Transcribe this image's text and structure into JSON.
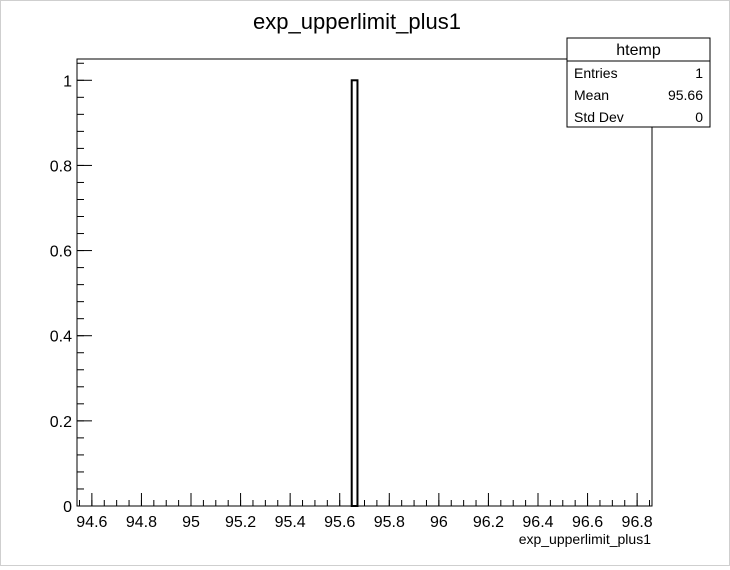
{
  "chart_data": {
    "type": "bar",
    "title": "exp_upperlimit_plus1",
    "xlabel": "exp_upperlimit_plus1",
    "ylabel": "",
    "xlim": [
      94.54,
      96.86
    ],
    "ylim": [
      0,
      1.05
    ],
    "xticks": [
      94.6,
      94.8,
      95,
      95.2,
      95.4,
      95.6,
      95.8,
      96,
      96.2,
      96.4,
      96.6,
      96.8
    ],
    "xtick_labels": [
      "94.6",
      "94.8",
      "95",
      "95.2",
      "95.4",
      "95.6",
      "95.8",
      "96",
      "96.2",
      "96.4",
      "96.6",
      "96.8"
    ],
    "yticks": [
      0,
      0.2,
      0.4,
      0.6,
      0.8,
      1
    ],
    "ytick_labels": [
      "0",
      "0.2",
      "0.4",
      "0.6",
      "0.8",
      "1"
    ],
    "bins": [
      {
        "low": 95.6484,
        "high": 95.6716,
        "value": 1
      }
    ],
    "grid": false,
    "stats_box": {
      "name": "htemp",
      "rows": [
        {
          "label": "Entries",
          "value": "1"
        },
        {
          "label": "Mean",
          "value": "95.66"
        },
        {
          "label": "Std Dev",
          "value": "0"
        }
      ]
    },
    "colors": {
      "line": "#000000",
      "fill": "#ffffff",
      "frame": "#000000"
    }
  }
}
